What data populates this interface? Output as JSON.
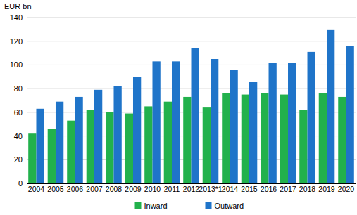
{
  "chart_data": {
    "type": "bar",
    "y_label": "EUR bn",
    "categories": [
      "2004",
      "2005",
      "2006",
      "2007",
      "2008",
      "2009",
      "2010",
      "2011",
      "2012",
      "2013*1",
      "2014",
      "2015",
      "2016",
      "2017",
      "2018",
      "2019",
      "2020"
    ],
    "series": [
      {
        "name": "Inward",
        "color": "#22b14c",
        "values": [
          42,
          46,
          53,
          62,
          60,
          59,
          65,
          69,
          73,
          64,
          76,
          75,
          76,
          75,
          62,
          76,
          73
        ]
      },
      {
        "name": "Outward",
        "color": "#1f74c9",
        "values": [
          63,
          69,
          73,
          79,
          82,
          90,
          103,
          103,
          114,
          105,
          96,
          86,
          102,
          102,
          111,
          130,
          116
        ]
      }
    ],
    "ylim": [
      0,
      140
    ],
    "yticks": [
      0,
      20,
      40,
      60,
      80,
      100,
      120,
      140
    ],
    "grid": true,
    "legend": "bottom"
  }
}
